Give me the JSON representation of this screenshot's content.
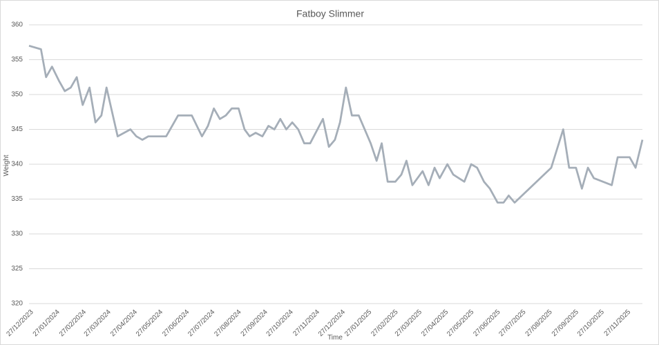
{
  "chart_data": {
    "type": "line",
    "title": "Fatboy Slimmer",
    "x_label": "Time",
    "y_label": "Weight",
    "x": [
      "27/12/2023",
      "10/01/2024",
      "16/01/2024",
      "23/01/2024",
      "31/01/2024",
      "07/02/2024",
      "14/02/2024",
      "21/02/2024",
      "28/02/2024",
      "07/03/2024",
      "14/03/2024",
      "21/03/2024",
      "27/03/2024",
      "09/04/2024",
      "24/04/2024",
      "01/05/2024",
      "08/05/2024",
      "15/05/2024",
      "05/06/2024",
      "19/06/2024",
      "05/07/2024",
      "17/07/2024",
      "24/07/2024",
      "31/07/2024",
      "07/08/2024",
      "14/08/2024",
      "21/08/2024",
      "29/08/2024",
      "05/09/2024",
      "11/09/2024",
      "18/09/2024",
      "26/09/2024",
      "03/10/2024",
      "10/10/2024",
      "17/10/2024",
      "24/10/2024",
      "31/10/2024",
      "07/11/2024",
      "14/11/2024",
      "21/11/2024",
      "06/12/2024",
      "13/12/2024",
      "20/12/2024",
      "26/12/2024",
      "02/01/2025",
      "09/01/2025",
      "17/01/2025",
      "31/01/2025",
      "07/02/2025",
      "13/02/2025",
      "20/02/2025",
      "01/03/2025",
      "08/03/2025",
      "14/03/2025",
      "21/03/2025",
      "02/04/2025",
      "09/04/2025",
      "16/04/2025",
      "22/04/2025",
      "01/05/2025",
      "08/05/2025",
      "21/05/2025",
      "29/05/2025",
      "05/06/2025",
      "13/06/2025",
      "20/06/2025",
      "29/06/2025",
      "06/07/2025",
      "12/07/2025",
      "19/07/2025",
      "31/08/2025",
      "14/09/2025",
      "21/09/2025",
      "29/09/2025",
      "06/10/2025",
      "13/10/2025",
      "20/10/2025",
      "10/11/2025",
      "17/11/2025",
      "01/12/2025",
      "08/12/2025",
      "16/12/2025"
    ],
    "series": [
      {
        "name": "Weight",
        "color": "#a5aeb8",
        "values": [
          357,
          356.5,
          352.5,
          354,
          352,
          350.5,
          351,
          352.5,
          348.5,
          351,
          346,
          347,
          351,
          344,
          345,
          344,
          343.5,
          344,
          344,
          347,
          347,
          344,
          345.5,
          348,
          346.5,
          347,
          348,
          348,
          345,
          344,
          344.5,
          344,
          345.5,
          345,
          346.5,
          345,
          346,
          345,
          343,
          343,
          346.5,
          342.5,
          343.5,
          346,
          351,
          347,
          347,
          343,
          340.5,
          343,
          337.5,
          337.5,
          338.5,
          340.5,
          337,
          339,
          337,
          339.5,
          338,
          340,
          338.5,
          337.5,
          340,
          339.5,
          337.5,
          336.5,
          334.5,
          334.5,
          335.5,
          334.5,
          339.5,
          345,
          339.5,
          339.5,
          336.5,
          339.5,
          338,
          337,
          341,
          341,
          339.5,
          343.5
        ]
      }
    ],
    "xlim": [
      "27/12/2023",
      "16/12/2025"
    ],
    "xticks": [
      "27/12/2023",
      "27/01/2024",
      "27/02/2024",
      "27/03/2024",
      "27/04/2024",
      "27/05/2024",
      "27/06/2024",
      "27/07/2024",
      "27/08/2024",
      "27/09/2024",
      "27/10/2024",
      "27/11/2024",
      "27/12/2024",
      "27/01/2025",
      "27/02/2025",
      "27/03/2025",
      "27/04/2025",
      "27/05/2025",
      "27/06/2025",
      "27/07/2025",
      "27/08/2025",
      "27/09/2025",
      "27/10/2025",
      "27/11/2025"
    ],
    "ylim": [
      320,
      360
    ],
    "yticks": [
      320,
      325,
      330,
      335,
      340,
      345,
      350,
      355,
      360
    ],
    "grid": true
  }
}
